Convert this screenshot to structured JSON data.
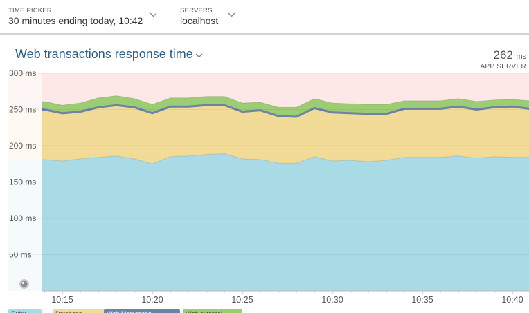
{
  "toolbar": {
    "time_picker": {
      "label": "TIME PICKER",
      "value": "30 minutes ending today, 10:42"
    },
    "servers": {
      "label": "SERVERS",
      "value": "localhost"
    }
  },
  "panel": {
    "title": "Web transactions response time",
    "metric_value": "262",
    "metric_unit": "ms",
    "metric_label": "APP SERVER"
  },
  "colors": {
    "ruby": "#a9dbe6",
    "database": "#f2db96",
    "web_memcache": "#6c82a8",
    "web_external": "#9ccd72",
    "threshold_high": "#fde8e8",
    "threshold_mid": "#fdf3df",
    "threshold_low": "#e8f4f7"
  },
  "legend": [
    {
      "label": "Ruby",
      "color": "#a9dbe6"
    },
    {
      "label": "Database",
      "color": "#f2db96"
    },
    {
      "label": "Web Memcache",
      "color": "#6c82a8"
    },
    {
      "label": "Web external",
      "color": "#9ccd72"
    }
  ],
  "chart_data": {
    "type": "area",
    "stacked": true,
    "y_tick_labels": [
      "300 ms",
      "250 ms",
      "200 ms",
      "150 ms",
      "100 ms",
      "50 ms"
    ],
    "y_ticks": [
      300,
      250,
      200,
      150,
      100,
      50
    ],
    "ylim": [
      0,
      300
    ],
    "x_tick_labels": [
      "10:15",
      "10:20",
      "10:25",
      "10:30",
      "10:35",
      "10:40"
    ],
    "x_ticks": [
      "10:15",
      "10:20",
      "10:25",
      "10:30",
      "10:35",
      "10:40"
    ],
    "x": [
      "10:13",
      "10:14",
      "10:15",
      "10:16",
      "10:17",
      "10:18",
      "10:19",
      "10:20",
      "10:21",
      "10:22",
      "10:23",
      "10:24",
      "10:25",
      "10:26",
      "10:27",
      "10:28",
      "10:29",
      "10:30",
      "10:31",
      "10:32",
      "10:33",
      "10:34",
      "10:35",
      "10:36",
      "10:37",
      "10:38",
      "10:39",
      "10:40",
      "10:41",
      "10:42"
    ],
    "series": [
      {
        "name": "Ruby",
        "color": "#a9dbe6",
        "values": [
          181,
          181,
          179,
          182,
          184,
          186,
          182,
          175,
          185,
          186,
          188,
          189,
          182,
          181,
          176,
          176,
          185,
          179,
          180,
          178,
          180,
          184,
          184,
          184,
          186,
          183,
          185,
          184,
          184,
          184
        ]
      },
      {
        "name": "Database",
        "color": "#f2db96",
        "values": [
          68,
          68,
          65,
          64,
          68,
          69,
          70,
          69,
          68,
          67,
          67,
          66,
          64,
          67,
          64,
          63,
          66,
          66,
          64,
          65,
          63,
          66,
          66,
          66,
          67,
          66,
          67,
          69,
          66,
          65
        ]
      },
      {
        "name": "Web Memcache",
        "color": "#6c82a8",
        "values": [
          1,
          1,
          1,
          1,
          1,
          1,
          1,
          1,
          1,
          1,
          1,
          1,
          1,
          1,
          1,
          1,
          1,
          1,
          1,
          1,
          1,
          1,
          1,
          1,
          1,
          1,
          1,
          1,
          1,
          1
        ]
      },
      {
        "name": "Web external",
        "color": "#9ccd72",
        "values": [
          11,
          11,
          11,
          12,
          13,
          13,
          12,
          12,
          12,
          12,
          12,
          12,
          12,
          11,
          12,
          13,
          13,
          13,
          13,
          13,
          13,
          11,
          11,
          11,
          11,
          11,
          10,
          10,
          11,
          11
        ]
      }
    ],
    "thresholds": {
      "high": 300,
      "mid": 250,
      "low": 180
    },
    "title": "Web transactions response time",
    "ylabel": "",
    "xlabel": "",
    "grid": true,
    "legend_position": "bottom"
  }
}
